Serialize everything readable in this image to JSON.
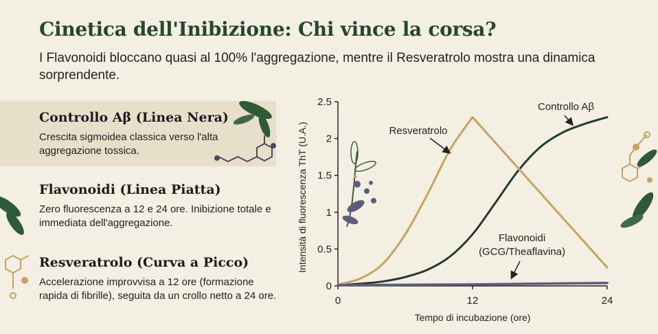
{
  "header": {
    "title": "Cinetica dell'Inibizione: Chi vince la corsa?",
    "subtitle": "I Flavonoidi bloccano quasi al 100% l'aggregazione, mentre il Resveratrolo mostra una dinamica sorprendente."
  },
  "legend_items": [
    {
      "heading": "Controllo Aβ (Linea Nera)",
      "text": "Crescita sigmoidea classica verso l'alta aggregazione tossica."
    },
    {
      "heading": "Flavonoidi (Linea Piatta)",
      "text": "Zero fluorescenza a 12 e 24 ore. Inibizione totale e immediata dell'aggregazione."
    },
    {
      "heading": "Resveratrolo (Curva a Picco)",
      "text": "Accelerazione improvvisa a 12 ore (formazione rapida di fibrille), seguita da un crollo netto a 24 ore."
    }
  ],
  "colors": {
    "title": "#23472f",
    "controllo": "#1f3d2a",
    "resveratrolo": "#c9a35c",
    "flavonoidi": "#5a5d7e",
    "band": "#e8dfcb",
    "background": "#f4efe3"
  },
  "decorations": [
    "leaf-icon",
    "molecule-icon",
    "botanical-sprig-icon"
  ],
  "chart_data": {
    "type": "line",
    "xlabel": "Tempo di incubazione (ore)",
    "ylabel": "Intensità di fluorescenza ThT (U.A.)",
    "xlim": [
      0,
      24
    ],
    "ylim": [
      0,
      2.5
    ],
    "x_ticks": [
      "0",
      "12",
      "24"
    ],
    "y_ticks": [
      "0",
      "0.5",
      "1",
      "1.5",
      "2",
      "2.5"
    ],
    "grid": false,
    "legend": "annotations",
    "series": [
      {
        "name": "Controllo Aβ",
        "label": "Controllo Aβ",
        "color": "#1f3d2a",
        "x": [
          0,
          2,
          4,
          6,
          8,
          10,
          12,
          14,
          16,
          18,
          20,
          22,
          24
        ],
        "y": [
          0.01,
          0.03,
          0.06,
          0.12,
          0.22,
          0.4,
          0.7,
          1.12,
          1.55,
          1.88,
          2.08,
          2.2,
          2.29
        ]
      },
      {
        "name": "Resveratrolo",
        "label": "Resveratrolo",
        "color": "#c9a35c",
        "x": [
          0,
          2,
          4,
          6,
          8,
          10,
          12,
          24
        ],
        "y": [
          0.02,
          0.1,
          0.3,
          0.7,
          1.25,
          1.85,
          2.29,
          0.25
        ]
      },
      {
        "name": "Flavonoidi (GCG/Theaflavina)",
        "label_line1": "Flavonoidi",
        "label_line2": "(GCG/Theaflavina)",
        "color": "#5a5d7e",
        "x": [
          0,
          12,
          24
        ],
        "y": [
          0.01,
          0.02,
          0.04
        ]
      }
    ]
  }
}
